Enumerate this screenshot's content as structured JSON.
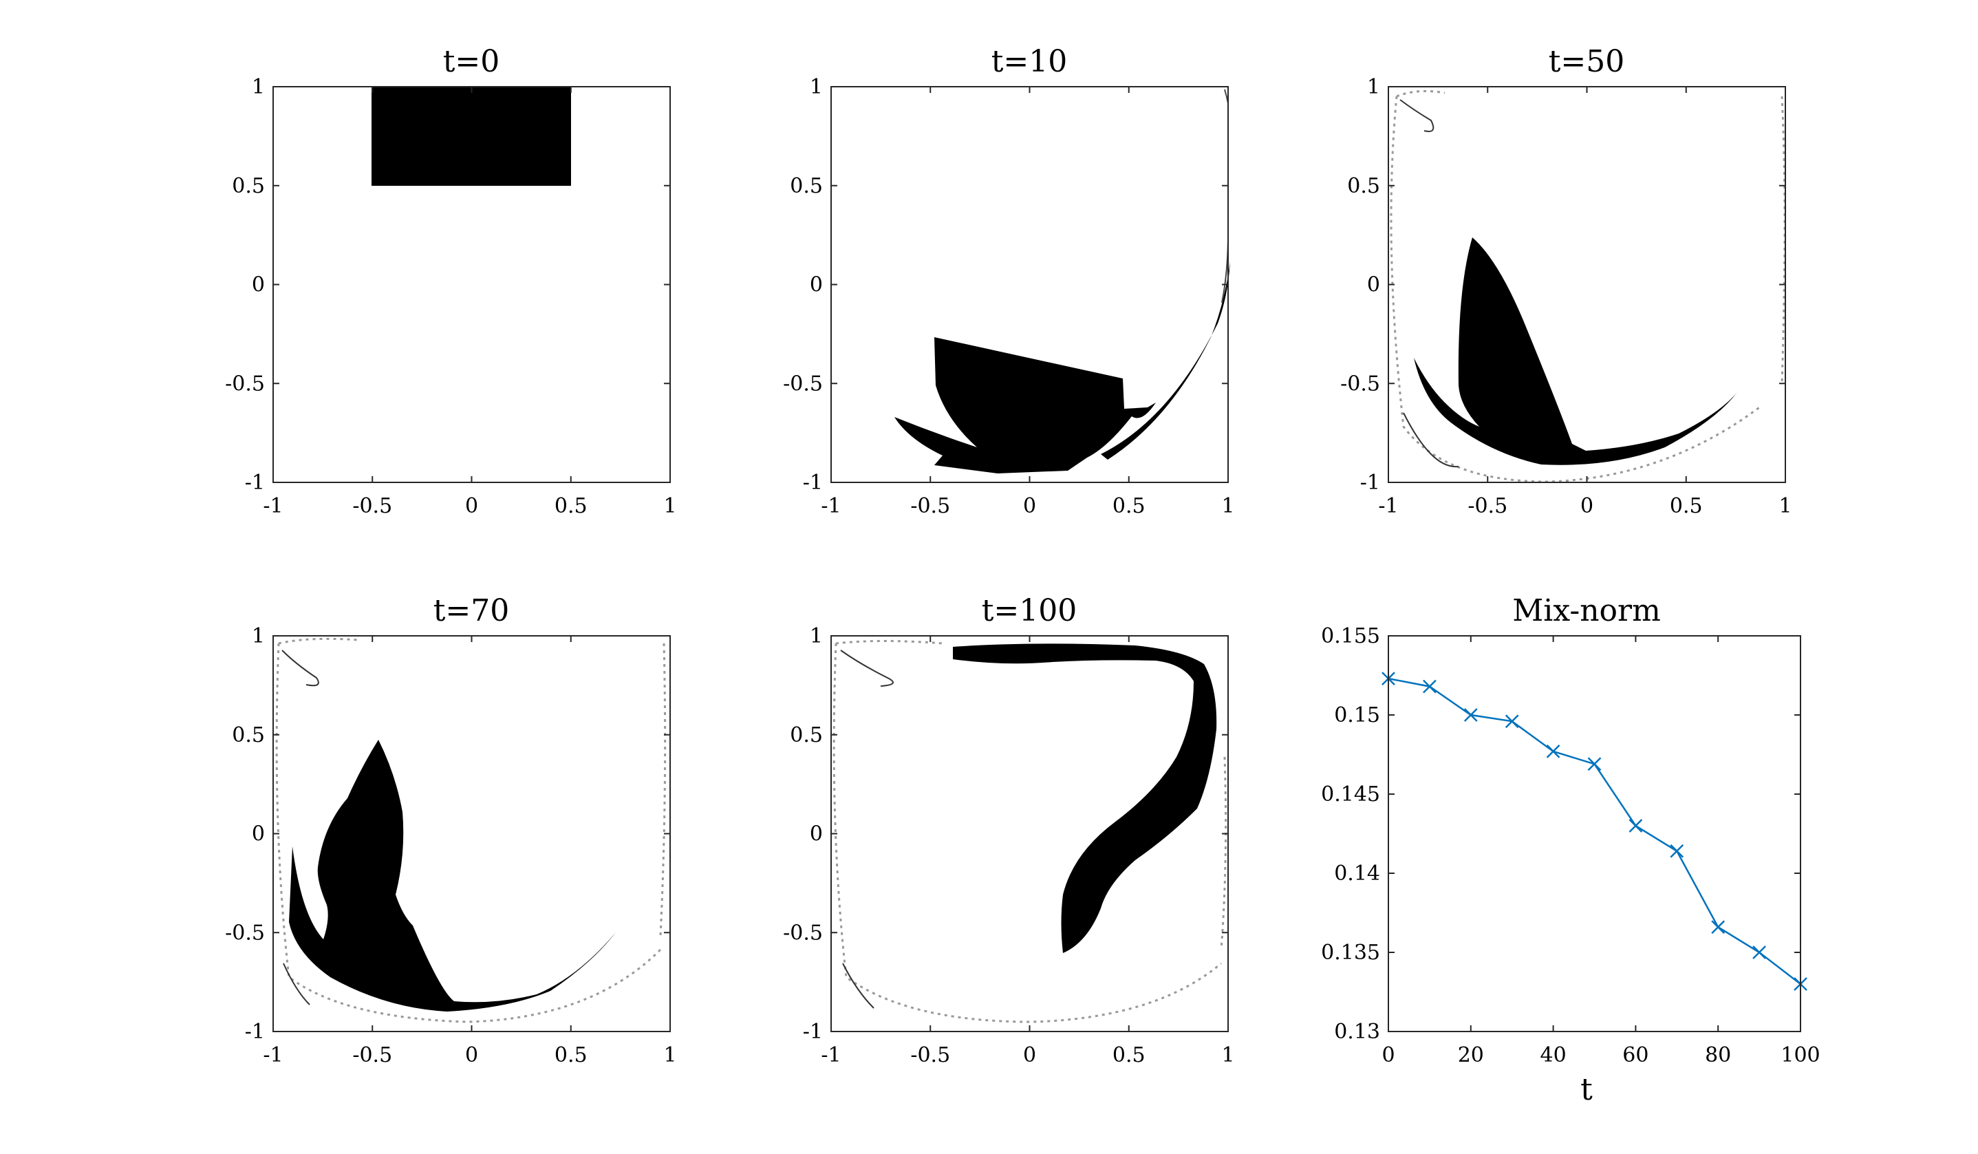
{
  "figure": {
    "panels": [
      {
        "title": "t=0",
        "x_ticks": [
          "-1",
          "-0.5",
          "0",
          "0.5",
          "1"
        ],
        "y_ticks": [
          "-1",
          "-0.5",
          "0",
          "0.5",
          "1"
        ]
      },
      {
        "title": "t=10",
        "x_ticks": [
          "-1",
          "-0.5",
          "0",
          "0.5",
          "1"
        ],
        "y_ticks": [
          "-1",
          "-0.5",
          "0",
          "0.5",
          "1"
        ]
      },
      {
        "title": "t=50",
        "x_ticks": [
          "-1",
          "-0.5",
          "0",
          "0.5",
          "1"
        ],
        "y_ticks": [
          "-1",
          "-0.5",
          "0",
          "0.5",
          "1"
        ]
      },
      {
        "title": "t=70",
        "x_ticks": [
          "-1",
          "-0.5",
          "0",
          "0.5",
          "1"
        ],
        "y_ticks": [
          "-1",
          "-0.5",
          "0",
          "0.5",
          "1"
        ]
      },
      {
        "title": "t=100",
        "x_ticks": [
          "-1",
          "-0.5",
          "0",
          "0.5",
          "1"
        ],
        "y_ticks": [
          "-1",
          "-0.5",
          "0",
          "0.5",
          "1"
        ]
      }
    ]
  },
  "chart_data": {
    "type": "line",
    "title": "Mix-norm",
    "xlabel": "t",
    "ylabel": "",
    "x": [
      0,
      10,
      20,
      30,
      40,
      50,
      60,
      70,
      80,
      90,
      100
    ],
    "series": [
      {
        "values": [
          0.1523,
          0.1518,
          0.15,
          0.1496,
          0.1477,
          0.1469,
          0.143,
          0.1414,
          0.1366,
          0.135,
          0.133
        ],
        "color": "#0072BD",
        "marker": "x"
      }
    ],
    "xlim": [
      0,
      100
    ],
    "ylim": [
      0.13,
      0.155
    ],
    "x_ticks": [
      "0",
      "20",
      "40",
      "60",
      "80",
      "100"
    ],
    "y_ticks": [
      "0.13",
      "0.135",
      "0.14",
      "0.145",
      "0.15",
      "0.155"
    ],
    "grid": false
  }
}
